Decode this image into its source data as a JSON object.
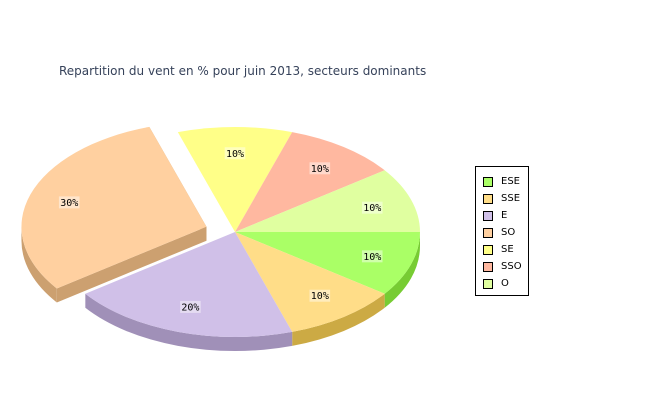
{
  "chart_data": {
    "type": "pie",
    "title": "Repartition du vent en % pour juin 2013, secteurs dominants",
    "categories": [
      "ESE",
      "SSE",
      "E",
      "SO",
      "SE",
      "SSO",
      "O"
    ],
    "values": [
      10,
      10,
      20,
      30,
      10,
      10,
      10
    ],
    "value_labels": [
      "10%",
      "10%",
      "20%",
      "30%",
      "10%",
      "10%",
      "10%"
    ],
    "exploded": [
      "SO"
    ],
    "legend_position": "right",
    "colors": [
      "#aaff66",
      "#ffdd88",
      "#d0c0e8",
      "#ffd0a0",
      "#ffff88",
      "#ffb8a0",
      "#e0ffa0"
    ],
    "side_colors": [
      "#77cc33",
      "#ccaa44",
      "#a090b8",
      "#cca070",
      "#cccc55",
      "#cc8870",
      "#b0cc70"
    ]
  }
}
